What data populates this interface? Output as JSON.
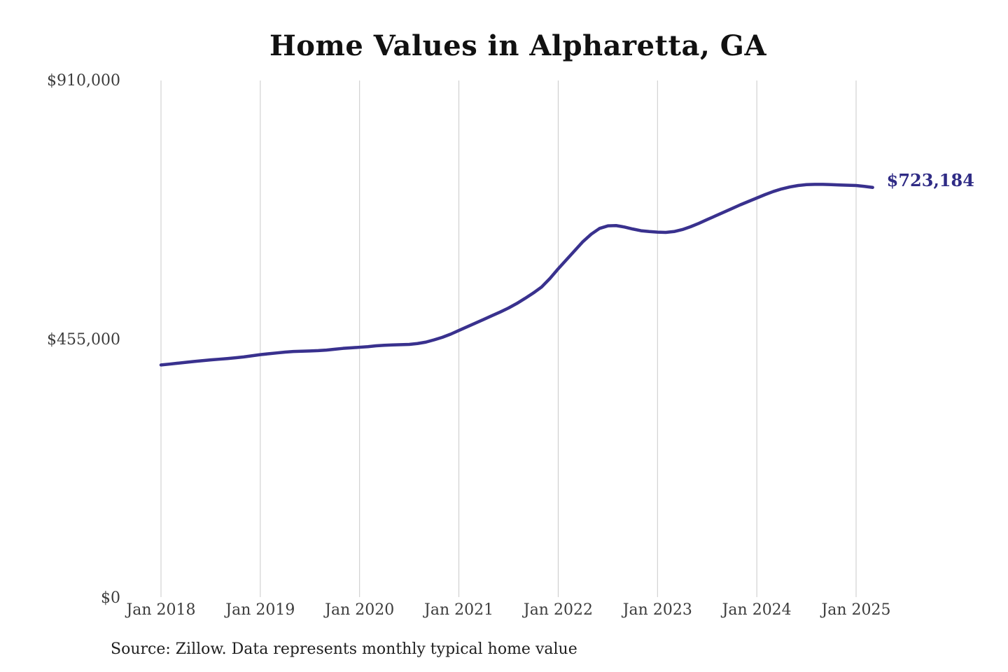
{
  "header": {
    "title": "Home Values in Alpharetta, GA"
  },
  "footer": {
    "source_note": "Source: Zillow. Data represents monthly typical home value"
  },
  "colors": {
    "background": "#ffffff",
    "line": "#39318e",
    "end_label": "#2f2b85",
    "gridline": "#c9c9c9",
    "axis_text": "#3d3d3d",
    "title_text": "#111111",
    "source_text": "#1f1f1f"
  },
  "chart_data": {
    "type": "line",
    "title": "Home Values in Alpharetta, GA",
    "xlabel": "",
    "ylabel": "",
    "grid": "vertical-only",
    "legend": "none",
    "ylim": [
      0,
      910000
    ],
    "x_tick_labels": [
      "Jan 2018",
      "Jan 2019",
      "Jan 2020",
      "Jan 2021",
      "Jan 2022",
      "Jan 2023",
      "Jan 2024",
      "Jan 2025"
    ],
    "y_ticks": [
      {
        "label": "$0",
        "value": 0
      },
      {
        "label": "$455,000",
        "value": 455000
      },
      {
        "label": "$910,000",
        "value": 910000
      }
    ],
    "end_label": "$723,184",
    "final_value": 723184,
    "series": [
      {
        "name": "Monthly typical home value",
        "frequency": "monthly",
        "start": "Jan 2018",
        "end": "Mar 2025",
        "values": [
          410800,
          412300,
          413900,
          415500,
          417000,
          418400,
          419700,
          420900,
          422100,
          423400,
          425000,
          427000,
          429000,
          430500,
          432000,
          433500,
          434500,
          435000,
          435500,
          436000,
          437000,
          438500,
          440000,
          441000,
          442000,
          443000,
          444500,
          445500,
          446000,
          446500,
          447000,
          448500,
          451000,
          455000,
          459500,
          465000,
          471500,
          478000,
          484500,
          491000,
          497500,
          504000,
          511000,
          519000,
          528000,
          537500,
          548000,
          563000,
          580000,
          596000,
          612000,
          628000,
          641000,
          651000,
          655500,
          656000,
          653500,
          650000,
          647000,
          645500,
          644500,
          644000,
          645500,
          649000,
          654000,
          660000,
          666500,
          673000,
          679500,
          686000,
          692500,
          698500,
          704500,
          710500,
          716000,
          720500,
          724000,
          726500,
          728000,
          728500,
          728500,
          728000,
          727500,
          727000,
          726500,
          725000,
          723184
        ]
      }
    ]
  }
}
